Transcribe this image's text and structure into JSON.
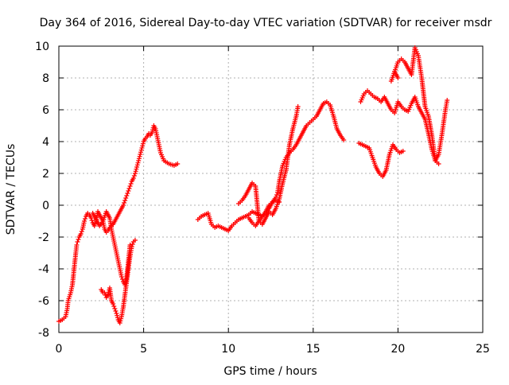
{
  "chart_data": {
    "type": "scatter",
    "title": "Day 364 of 2016, Sidereal Day-to-day VTEC variation (SDTVAR) for receiver msdr",
    "xlabel": "GPS time / hours",
    "ylabel": "SDTVAR / TECUs",
    "xlim": [
      0,
      25
    ],
    "ylim": [
      -8,
      10
    ],
    "x_ticks": [
      0,
      5,
      10,
      15,
      20,
      25
    ],
    "y_ticks": [
      -8,
      -6,
      -4,
      -2,
      0,
      2,
      4,
      6,
      8,
      10
    ],
    "grid": true,
    "marker": "+",
    "colors": {
      "points": "#ff0000",
      "grid": "#b0b0b0",
      "axes": "#000000"
    },
    "series": [
      {
        "name": "",
        "x": [
          0.0,
          0.2,
          0.4,
          0.5,
          0.55,
          0.7,
          0.8,
          0.9,
          1.0,
          1.05,
          1.1,
          1.2,
          1.3,
          1.4,
          1.5,
          1.6,
          1.7,
          1.8,
          1.9,
          2.0,
          2.1,
          2.2,
          2.3,
          2.4,
          2.5,
          2.6,
          2.7,
          2.8,
          2.9,
          3.0,
          3.1,
          3.2,
          3.3,
          3.4,
          3.5,
          3.6,
          3.7,
          3.8,
          3.9,
          4.0,
          4.1,
          4.2,
          4.3,
          4.4,
          4.5,
          4.6,
          4.7,
          4.8,
          4.9,
          5.0,
          5.1,
          5.2,
          5.3,
          5.4,
          5.5,
          5.6,
          5.7,
          5.8,
          5.9,
          6.0,
          6.2,
          6.5,
          6.8,
          7.0
        ],
        "y": [
          -7.3,
          -7.2,
          -7.0,
          -6.5,
          -6.0,
          -5.5,
          -5.0,
          -4.0,
          -3.0,
          -2.5,
          -2.3,
          -2.0,
          -1.8,
          -1.5,
          -1.0,
          -0.7,
          -0.5,
          -0.6,
          -0.8,
          -1.1,
          -1.3,
          -1.0,
          -0.4,
          -0.6,
          -0.8,
          -1.0,
          -1.5,
          -1.7,
          -1.6,
          -1.4,
          -1.3,
          -1.2,
          -1.0,
          -0.8,
          -0.6,
          -0.4,
          -0.2,
          0.0,
          0.3,
          0.6,
          0.9,
          1.2,
          1.5,
          1.7,
          2.0,
          2.4,
          2.8,
          3.2,
          3.6,
          4.0,
          4.2,
          4.3,
          4.5,
          4.4,
          4.6,
          5.0,
          4.8,
          4.3,
          3.8,
          3.3,
          2.8,
          2.6,
          2.5,
          2.6
        ]
      },
      {
        "name": "",
        "x": [
          2.0,
          2.2,
          2.4,
          2.6,
          2.8,
          3.0,
          3.1,
          3.2,
          3.3,
          3.4,
          3.5,
          3.6,
          3.7,
          3.8,
          3.9,
          4.0,
          4.1,
          4.2
        ],
        "y": [
          -0.5,
          -0.9,
          -1.3,
          -1.0,
          -0.4,
          -0.8,
          -1.5,
          -2.0,
          -2.5,
          -3.0,
          -3.5,
          -4.0,
          -4.5,
          -4.8,
          -5.0,
          -4.5,
          -3.5,
          -2.5
        ]
      },
      {
        "name": "",
        "x": [
          2.5,
          2.6,
          2.7,
          2.8,
          2.9,
          3.0,
          3.1,
          3.2,
          3.3,
          3.4,
          3.5,
          3.6,
          3.7,
          3.8,
          3.9,
          4.0,
          4.1,
          4.2,
          4.3,
          4.4,
          4.5
        ],
        "y": [
          -5.3,
          -5.5,
          -5.5,
          -5.8,
          -5.6,
          -5.2,
          -6.0,
          -6.2,
          -6.5,
          -6.8,
          -7.2,
          -7.4,
          -7.0,
          -6.4,
          -5.6,
          -4.8,
          -4.0,
          -3.2,
          -2.6,
          -2.3,
          -2.2
        ]
      },
      {
        "name": "",
        "x": [
          8.2,
          8.4,
          8.6,
          8.8,
          9.0,
          9.2,
          9.4,
          9.6,
          9.8,
          10.0,
          10.2,
          10.4,
          10.6,
          10.8,
          11.0,
          11.2,
          11.4,
          11.6,
          11.8,
          12.0,
          12.2,
          12.4,
          12.6,
          12.8,
          12.9,
          13.0,
          13.2,
          13.4,
          13.6,
          13.8,
          14.0,
          14.2,
          14.4,
          14.6,
          14.8,
          15.0,
          15.2,
          15.4,
          15.6,
          15.8,
          16.0,
          16.2,
          16.4,
          16.6,
          16.8
        ],
        "y": [
          -0.9,
          -0.7,
          -0.6,
          -0.5,
          -1.2,
          -1.4,
          -1.3,
          -1.4,
          -1.5,
          -1.6,
          -1.3,
          -1.1,
          -0.9,
          -0.8,
          -0.7,
          -0.6,
          -0.4,
          -0.5,
          -0.6,
          -0.7,
          -0.5,
          -0.2,
          0.2,
          0.5,
          0.8,
          1.5,
          2.5,
          3.0,
          3.3,
          3.5,
          3.8,
          4.2,
          4.6,
          5.0,
          5.2,
          5.4,
          5.6,
          6.0,
          6.4,
          6.5,
          6.3,
          5.6,
          4.8,
          4.4,
          4.1
        ]
      },
      {
        "name": "",
        "x": [
          10.6,
          10.8,
          11.0,
          11.2,
          11.4,
          11.6,
          11.8,
          12.0,
          12.2,
          12.4,
          12.6,
          12.8,
          13.0,
          13.2,
          13.4,
          13.6,
          13.8,
          14.0,
          14.1
        ],
        "y": [
          0.1,
          0.3,
          0.6,
          1.0,
          1.4,
          1.2,
          -1.0,
          -1.2,
          -0.8,
          -0.4,
          -0.6,
          -0.2,
          0.4,
          1.4,
          2.2,
          3.8,
          4.8,
          5.6,
          6.2
        ]
      },
      {
        "name": "",
        "x": [
          11.2,
          11.4,
          11.6,
          11.8,
          12.0,
          12.2,
          12.4,
          12.6,
          12.8,
          13.0
        ],
        "y": [
          -0.8,
          -1.1,
          -1.3,
          -1.0,
          -0.7,
          -0.4,
          0.0,
          0.2,
          0.3,
          0.2
        ]
      },
      {
        "name": "",
        "x": [
          17.8,
          18.0,
          18.2,
          18.4,
          18.6,
          18.8,
          19.0,
          19.2,
          19.4,
          19.6,
          19.8,
          20.0,
          20.2,
          20.4,
          20.6,
          20.8,
          21.0,
          21.2,
          21.4,
          21.6,
          21.8,
          22.0,
          22.2,
          22.4,
          22.6,
          22.8,
          22.9
        ],
        "y": [
          6.5,
          7.0,
          7.2,
          7.0,
          6.8,
          6.7,
          6.5,
          6.8,
          6.4,
          6.0,
          5.8,
          6.5,
          6.2,
          6.0,
          5.9,
          6.4,
          6.8,
          6.2,
          5.8,
          5.4,
          4.5,
          3.5,
          2.8,
          3.2,
          4.5,
          6.0,
          6.6
        ]
      },
      {
        "name": "",
        "x": [
          17.7,
          17.9,
          18.1,
          18.3,
          18.5,
          18.7,
          18.9,
          19.1,
          19.3,
          19.5,
          19.7,
          19.9,
          20.1,
          20.3
        ],
        "y": [
          3.9,
          3.8,
          3.7,
          3.6,
          3.0,
          2.4,
          2.0,
          1.8,
          2.2,
          3.2,
          3.8,
          3.5,
          3.3,
          3.4
        ]
      },
      {
        "name": "",
        "x": [
          19.8,
          20.0,
          20.2,
          20.4,
          20.5,
          20.6,
          20.8,
          21.0,
          21.2,
          21.4,
          21.6,
          21.8,
          22.0,
          22.2,
          22.4
        ],
        "y": [
          8.4,
          9.0,
          9.2,
          9.0,
          8.8,
          8.6,
          8.2,
          9.9,
          9.4,
          8.0,
          6.2,
          5.6,
          4.4,
          2.8,
          2.6
        ]
      },
      {
        "name": "",
        "x": [
          19.6,
          19.8,
          20.0
        ],
        "y": [
          7.8,
          8.4,
          8.0
        ]
      }
    ]
  }
}
